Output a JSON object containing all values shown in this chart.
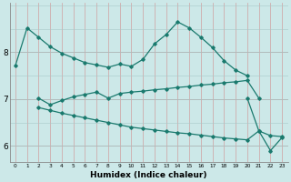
{
  "xlabel": "Humidex (Indice chaleur)",
  "bg_color": "#cce8e8",
  "line_color": "#1a7a6e",
  "xlim": [
    -0.5,
    23.5
  ],
  "ylim": [
    5.65,
    9.05
  ],
  "yticks": [
    6,
    7,
    8
  ],
  "xticks": [
    0,
    1,
    2,
    3,
    4,
    5,
    6,
    7,
    8,
    9,
    10,
    11,
    12,
    13,
    14,
    15,
    16,
    17,
    18,
    19,
    20,
    21,
    22,
    23
  ],
  "line1_x": [
    0,
    1,
    2,
    3,
    4,
    5,
    6,
    7,
    8,
    9,
    10,
    11,
    12,
    13,
    14,
    15,
    16,
    17,
    18,
    19,
    20
  ],
  "line1_y": [
    7.72,
    8.52,
    8.32,
    8.12,
    7.98,
    7.88,
    7.78,
    7.73,
    7.68,
    7.75,
    7.7,
    7.85,
    8.18,
    8.38,
    8.65,
    8.52,
    8.32,
    8.1,
    7.82,
    7.62,
    7.5
  ],
  "line2_x": [
    2,
    3,
    4,
    5,
    6,
    7,
    8,
    9,
    10,
    11,
    12,
    13,
    14,
    15,
    16,
    17,
    18,
    19,
    20,
    21
  ],
  "line2_y": [
    7.02,
    6.88,
    6.97,
    7.05,
    7.1,
    7.15,
    7.02,
    7.12,
    7.15,
    7.17,
    7.2,
    7.22,
    7.25,
    7.27,
    7.3,
    7.32,
    7.35,
    7.37,
    7.4,
    7.02
  ],
  "line3_x": [
    2,
    3,
    4,
    5,
    6,
    7,
    8,
    9,
    10,
    11,
    12,
    13,
    14,
    15,
    16,
    17,
    18,
    19,
    20,
    21,
    22,
    23
  ],
  "line3_y": [
    6.82,
    6.76,
    6.7,
    6.65,
    6.6,
    6.55,
    6.5,
    6.45,
    6.4,
    6.37,
    6.34,
    6.31,
    6.28,
    6.26,
    6.23,
    6.2,
    6.17,
    6.15,
    6.13,
    6.32,
    6.22,
    6.2
  ],
  "line4_x": [
    20,
    21,
    22,
    23
  ],
  "line4_y": [
    7.02,
    6.32,
    5.9,
    6.18
  ]
}
